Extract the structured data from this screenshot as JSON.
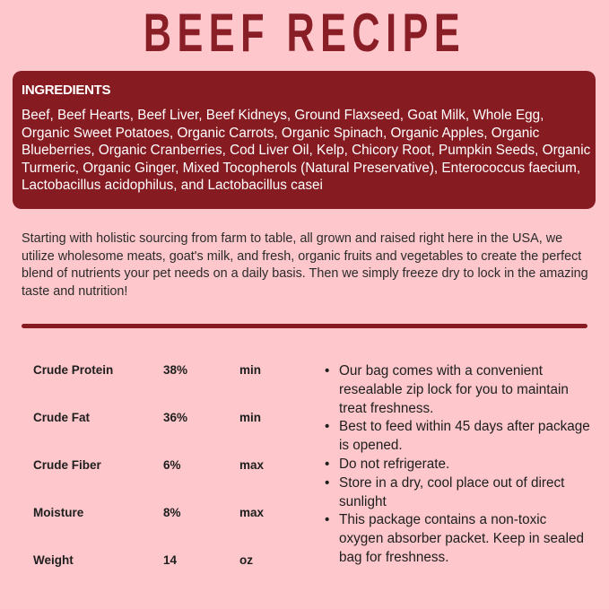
{
  "title": "BEEF RECIPE",
  "ingredients": {
    "heading": "INGREDIENTS",
    "text": "Beef, Beef Hearts, Beef Liver, Beef Kidneys, Ground Flaxseed, Goat Milk, Whole Egg, Organic Sweet Potatoes, Organic Carrots, Organic Spinach, Organic Apples, Organic Blueberries, Organic Cranberries, Cod Liver Oil, Kelp, Chicory Root, Pumpkin Seeds, Organic Turmeric, Organic Ginger, Mixed Tocopherols (Natural Preservative), Enterococcus faecium, Lactobacillus acidophilus, and Lactobacillus casei"
  },
  "intro": "Starting with holistic sourcing from farm to table, all grown and raised right here in the USA, we utilize wholesome meats, goat's milk, and fresh, organic fruits and vegetables to create the perfect blend of nutrients your pet needs on a daily basis. Then we simply freeze dry to lock in the amazing taste and nutrition!",
  "analysis": [
    {
      "name": "Crude Protein",
      "value": "38%",
      "unit": "min"
    },
    {
      "name": "Crude Fat",
      "value": "36%",
      "unit": "min"
    },
    {
      "name": "Crude Fiber",
      "value": "6%",
      "unit": "max"
    },
    {
      "name": "Moisture",
      "value": "8%",
      "unit": "max"
    },
    {
      "name": "Weight",
      "value": "14",
      "unit": "oz"
    }
  ],
  "notes": [
    "Our bag comes with a convenient resealable zip lock for you to maintain treat freshness.",
    "Best to feed within 45 days after package is opened.",
    "Do not refrigerate.",
    "Store in a dry, cool place out of direct sunlight",
    "This package contains a non-toxic oxygen absorber packet. Keep in sealed bag for freshness."
  ],
  "colors": {
    "background": "#fdc7cb",
    "accent": "#861b22"
  }
}
